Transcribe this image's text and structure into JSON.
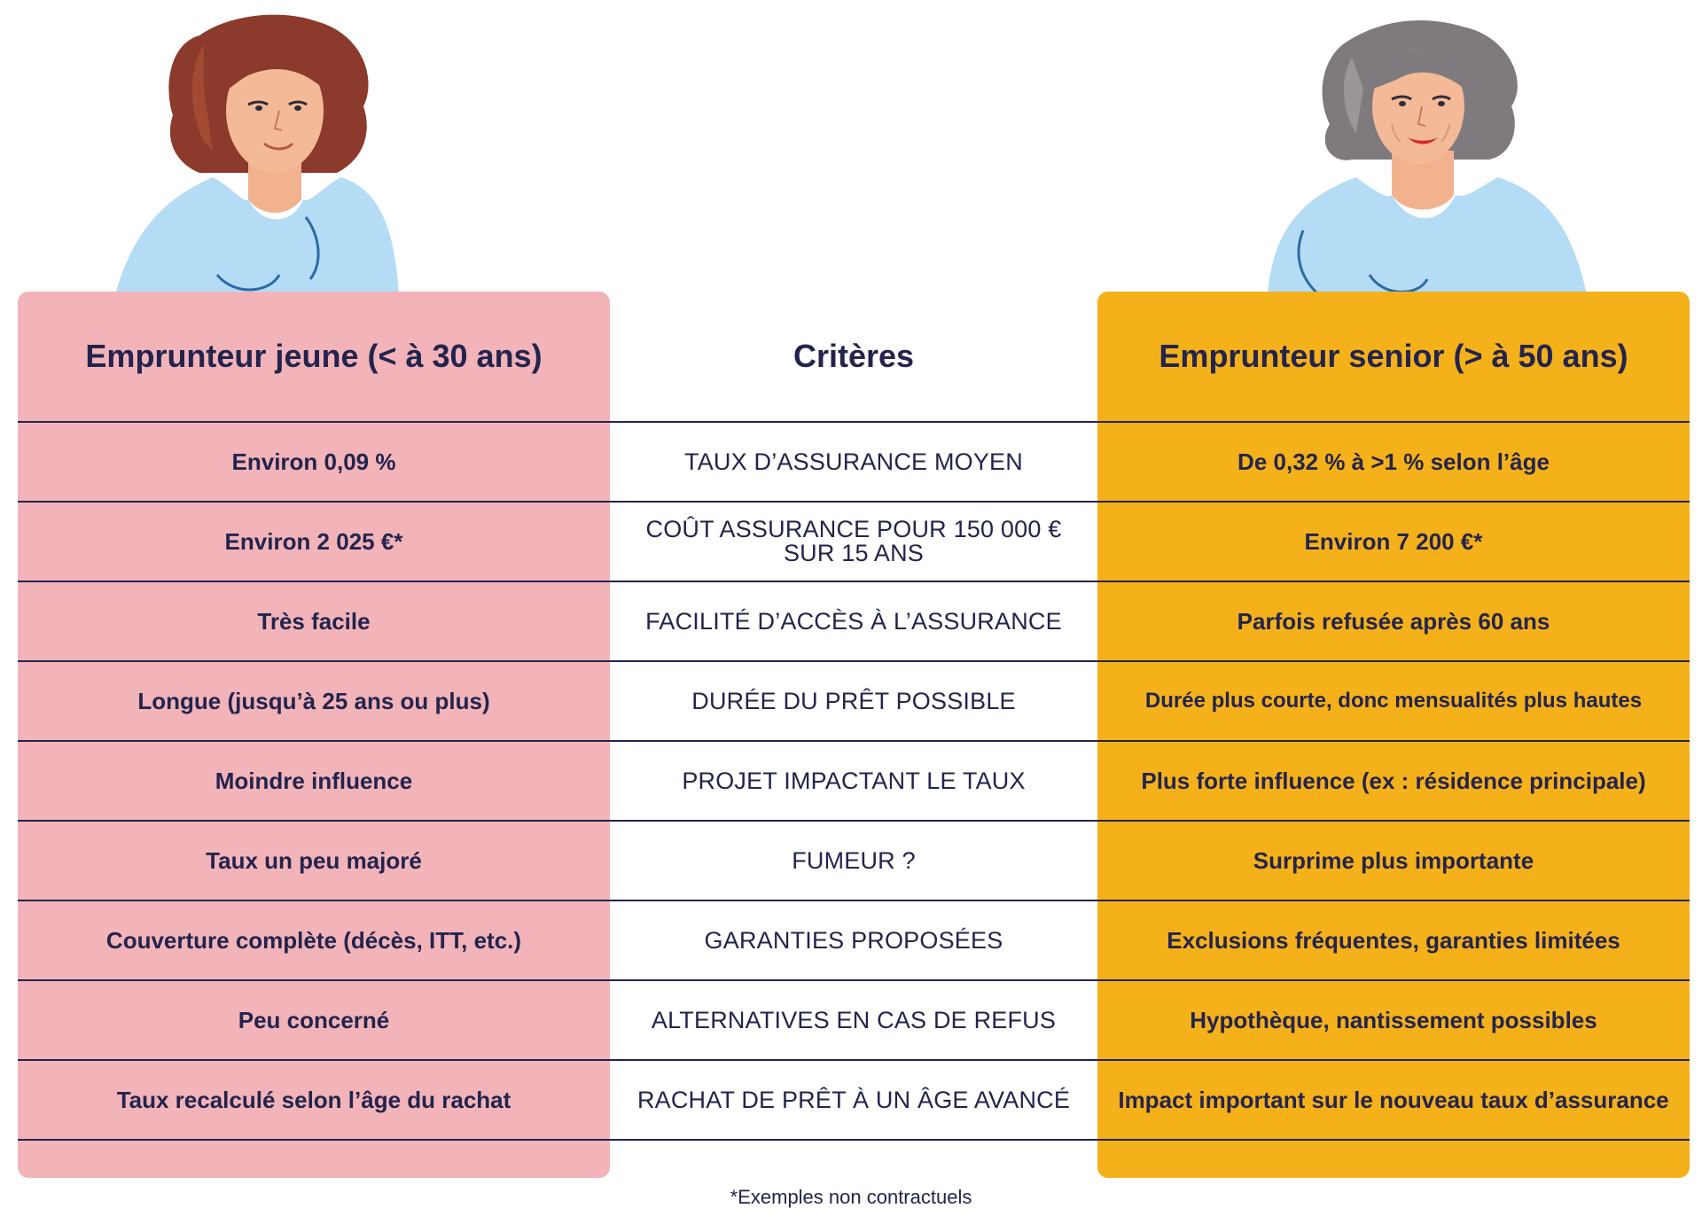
{
  "columns": {
    "young_title": "Emprunteur jeune (< à 30 ans)",
    "criteria_title": "Critères",
    "senior_title": "Emprunteur senior (> à 50 ans)"
  },
  "rows": [
    {
      "young": "Environ 0,09 %",
      "criterion": "TAUX D’ASSURANCE MOYEN",
      "senior": "De 0,32 % à >1 % selon l’âge"
    },
    {
      "young": "Environ 2 025 €*",
      "criterion": "COÛT ASSURANCE POUR 150 000 € SUR 15 ANS",
      "senior": "Environ 7 200 €*"
    },
    {
      "young": "Très facile",
      "criterion": "FACILITÉ D’ACCÈS À L’ASSURANCE",
      "senior": "Parfois refusée après 60 ans"
    },
    {
      "young": "Longue (jusqu’à 25 ans ou plus)",
      "criterion": "DURÉE DU PRÊT POSSIBLE",
      "senior": "Durée plus courte, donc mensualités plus hautes"
    },
    {
      "young": "Moindre influence",
      "criterion": "PROJET IMPACTANT LE TAUX",
      "senior": "Plus forte influence (ex : résidence principale)"
    },
    {
      "young": "Taux un peu majoré",
      "criterion": "FUMEUR ?",
      "senior": "Surprime plus importante"
    },
    {
      "young": "Couverture complète (décès, ITT, etc.)",
      "criterion": "GARANTIES PROPOSÉES",
      "senior": "Exclusions fréquentes, garanties limitées"
    },
    {
      "young": "Peu concerné",
      "criterion": "ALTERNATIVES EN CAS DE REFUS",
      "senior": "Hypothèque, nantissement possibles"
    },
    {
      "young": "Taux recalculé selon l’âge du rachat",
      "criterion": "RACHAT DE PRÊT À UN ÂGE AVANCÉ",
      "senior": "Impact important sur le nouveau taux d’assurance"
    }
  ],
  "footnote": "*Exemples non contractuels",
  "colors": {
    "young_bg": "#f2b4b9",
    "senior_bg": "#f5b11a",
    "text": "#23244e",
    "shirt": "#b5dcf5"
  }
}
